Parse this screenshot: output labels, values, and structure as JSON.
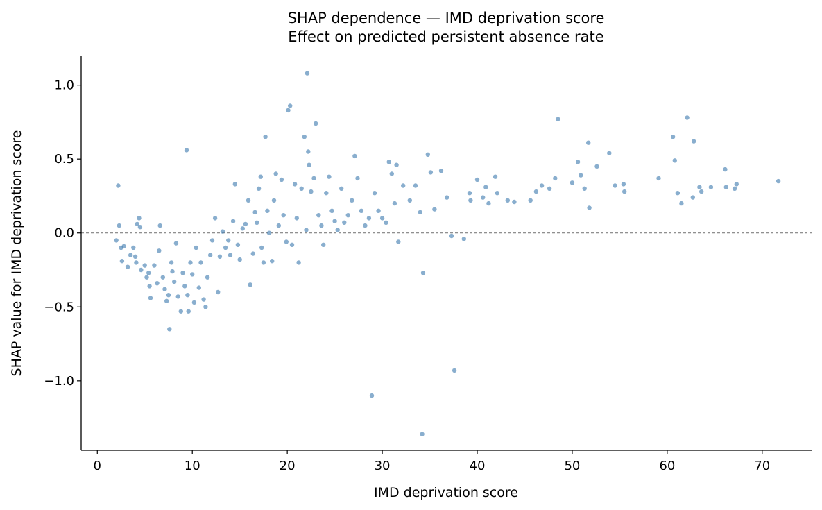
{
  "chart_data": {
    "type": "scatter",
    "title": "SHAP dependence — IMD deprivation score",
    "subtitle": "Effect on predicted persistent absence rate",
    "xlabel": "IMD deprivation score",
    "ylabel": "SHAP value for IMD deprivation score",
    "xlim": [
      -1.7,
      75.2
    ],
    "ylim": [
      -1.47,
      1.2
    ],
    "x_ticks": [
      "0",
      "10",
      "20",
      "30",
      "40",
      "50",
      "60",
      "70"
    ],
    "y_ticks": [
      "−1.0",
      "−0.5",
      "0.0",
      "0.5",
      "1.0"
    ],
    "grid": false,
    "reference_line": 0.0,
    "point_color": "#4a82b4",
    "points": [
      [
        2.2,
        0.32
      ],
      [
        2.3,
        0.05
      ],
      [
        2.0,
        -0.05
      ],
      [
        2.5,
        -0.1
      ],
      [
        2.8,
        -0.09
      ],
      [
        2.6,
        -0.19
      ],
      [
        3.2,
        -0.23
      ],
      [
        3.5,
        -0.15
      ],
      [
        3.8,
        -0.1
      ],
      [
        4.0,
        -0.16
      ],
      [
        4.2,
        0.06
      ],
      [
        4.4,
        0.1
      ],
      [
        4.5,
        0.04
      ],
      [
        4.1,
        -0.2
      ],
      [
        4.6,
        -0.25
      ],
      [
        5.0,
        -0.22
      ],
      [
        5.2,
        -0.3
      ],
      [
        5.5,
        -0.36
      ],
      [
        5.6,
        -0.44
      ],
      [
        5.4,
        -0.27
      ],
      [
        6.0,
        -0.22
      ],
      [
        6.3,
        -0.34
      ],
      [
        6.5,
        -0.12
      ],
      [
        6.6,
        0.05
      ],
      [
        6.9,
        -0.3
      ],
      [
        7.1,
        -0.38
      ],
      [
        7.3,
        -0.46
      ],
      [
        7.5,
        -0.42
      ],
      [
        7.6,
        -0.65
      ],
      [
        7.8,
        -0.2
      ],
      [
        7.9,
        -0.26
      ],
      [
        8.1,
        -0.33
      ],
      [
        8.3,
        -0.07
      ],
      [
        8.5,
        -0.43
      ],
      [
        8.8,
        -0.53
      ],
      [
        9.0,
        -0.27
      ],
      [
        9.2,
        -0.36
      ],
      [
        9.4,
        0.56
      ],
      [
        9.5,
        -0.42
      ],
      [
        9.6,
        -0.53
      ],
      [
        9.8,
        -0.2
      ],
      [
        10.0,
        -0.28
      ],
      [
        10.2,
        -0.47
      ],
      [
        10.4,
        -0.1
      ],
      [
        10.7,
        -0.37
      ],
      [
        10.9,
        -0.2
      ],
      [
        11.2,
        -0.45
      ],
      [
        11.4,
        -0.5
      ],
      [
        11.6,
        -0.3
      ],
      [
        11.9,
        -0.15
      ],
      [
        12.1,
        -0.05
      ],
      [
        12.4,
        0.1
      ],
      [
        12.7,
        -0.4
      ],
      [
        12.9,
        -0.16
      ],
      [
        13.2,
        0.01
      ],
      [
        13.5,
        -0.1
      ],
      [
        13.8,
        -0.05
      ],
      [
        14.0,
        -0.15
      ],
      [
        14.3,
        0.08
      ],
      [
        14.5,
        0.33
      ],
      [
        14.8,
        -0.08
      ],
      [
        15.0,
        -0.18
      ],
      [
        15.3,
        0.03
      ],
      [
        15.6,
        0.06
      ],
      [
        15.9,
        0.22
      ],
      [
        16.1,
        -0.35
      ],
      [
        16.4,
        -0.14
      ],
      [
        16.6,
        0.14
      ],
      [
        16.8,
        0.07
      ],
      [
        17.0,
        0.3
      ],
      [
        17.2,
        0.38
      ],
      [
        17.3,
        -0.1
      ],
      [
        17.5,
        -0.2
      ],
      [
        17.7,
        0.65
      ],
      [
        17.9,
        0.15
      ],
      [
        18.1,
        0.0
      ],
      [
        18.4,
        -0.19
      ],
      [
        18.6,
        0.22
      ],
      [
        18.8,
        0.4
      ],
      [
        19.1,
        0.05
      ],
      [
        19.4,
        0.36
      ],
      [
        19.6,
        0.12
      ],
      [
        19.9,
        -0.06
      ],
      [
        20.1,
        0.83
      ],
      [
        20.3,
        0.86
      ],
      [
        20.5,
        -0.08
      ],
      [
        20.8,
        0.33
      ],
      [
        21.0,
        0.1
      ],
      [
        21.2,
        -0.2
      ],
      [
        21.5,
        0.3
      ],
      [
        21.8,
        0.65
      ],
      [
        22.0,
        0.02
      ],
      [
        22.1,
        1.08
      ],
      [
        22.2,
        0.55
      ],
      [
        22.3,
        0.46
      ],
      [
        22.5,
        0.28
      ],
      [
        22.8,
        0.37
      ],
      [
        23.0,
        0.74
      ],
      [
        23.3,
        0.12
      ],
      [
        23.6,
        0.05
      ],
      [
        23.8,
        -0.08
      ],
      [
        24.1,
        0.27
      ],
      [
        24.4,
        0.38
      ],
      [
        24.7,
        0.15
      ],
      [
        25.0,
        0.08
      ],
      [
        25.3,
        0.02
      ],
      [
        25.7,
        0.3
      ],
      [
        26.0,
        0.07
      ],
      [
        26.4,
        0.12
      ],
      [
        26.8,
        0.22
      ],
      [
        27.1,
        0.52
      ],
      [
        27.4,
        0.37
      ],
      [
        27.8,
        0.15
      ],
      [
        28.2,
        0.05
      ],
      [
        28.6,
        0.1
      ],
      [
        28.9,
        -1.1
      ],
      [
        29.2,
        0.27
      ],
      [
        29.6,
        0.15
      ],
      [
        30.0,
        0.1
      ],
      [
        30.4,
        0.07
      ],
      [
        30.7,
        0.48
      ],
      [
        31.0,
        0.4
      ],
      [
        31.3,
        0.2
      ],
      [
        31.5,
        0.46
      ],
      [
        31.7,
        -0.06
      ],
      [
        32.2,
        0.32
      ],
      [
        32.9,
        0.22
      ],
      [
        33.5,
        0.32
      ],
      [
        34.0,
        0.14
      ],
      [
        34.2,
        -1.36
      ],
      [
        34.3,
        -0.27
      ],
      [
        34.8,
        0.53
      ],
      [
        35.1,
        0.41
      ],
      [
        35.5,
        0.16
      ],
      [
        36.2,
        0.42
      ],
      [
        36.8,
        0.24
      ],
      [
        37.3,
        -0.02
      ],
      [
        37.6,
        -0.93
      ],
      [
        38.6,
        -0.04
      ],
      [
        39.2,
        0.27
      ],
      [
        39.3,
        0.22
      ],
      [
        40.0,
        0.36
      ],
      [
        40.6,
        0.24
      ],
      [
        40.9,
        0.31
      ],
      [
        41.2,
        0.2
      ],
      [
        41.9,
        0.38
      ],
      [
        42.1,
        0.27
      ],
      [
        43.2,
        0.22
      ],
      [
        43.9,
        0.21
      ],
      [
        45.6,
        0.22
      ],
      [
        46.2,
        0.28
      ],
      [
        46.8,
        0.32
      ],
      [
        47.6,
        0.3
      ],
      [
        48.2,
        0.37
      ],
      [
        48.5,
        0.77
      ],
      [
        50.0,
        0.34
      ],
      [
        50.6,
        0.48
      ],
      [
        50.9,
        0.39
      ],
      [
        51.3,
        0.3
      ],
      [
        51.7,
        0.61
      ],
      [
        51.8,
        0.17
      ],
      [
        52.6,
        0.45
      ],
      [
        53.9,
        0.54
      ],
      [
        54.5,
        0.32
      ],
      [
        55.4,
        0.33
      ],
      [
        55.5,
        0.28
      ],
      [
        59.1,
        0.37
      ],
      [
        60.6,
        0.65
      ],
      [
        60.8,
        0.49
      ],
      [
        61.1,
        0.27
      ],
      [
        61.5,
        0.2
      ],
      [
        62.1,
        0.78
      ],
      [
        62.7,
        0.24
      ],
      [
        62.8,
        0.62
      ],
      [
        63.4,
        0.31
      ],
      [
        63.6,
        0.28
      ],
      [
        64.6,
        0.31
      ],
      [
        66.1,
        0.43
      ],
      [
        66.2,
        0.31
      ],
      [
        67.1,
        0.3
      ],
      [
        67.3,
        0.33
      ],
      [
        71.7,
        0.35
      ]
    ]
  }
}
